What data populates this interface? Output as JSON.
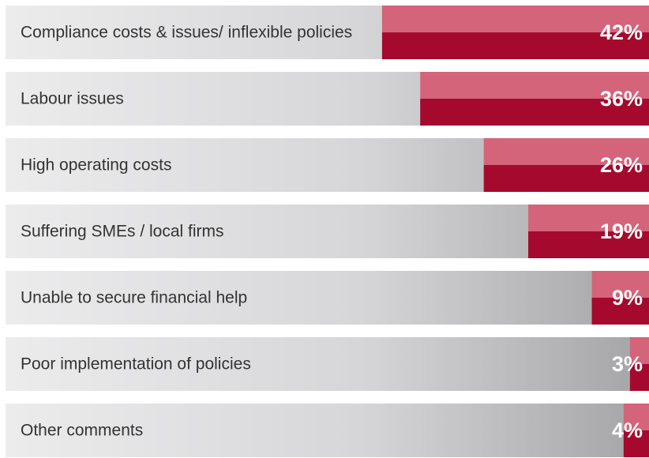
{
  "chart_data": {
    "type": "bar",
    "orientation": "horizontal",
    "categories": [
      "Compliance costs & issues/ inflexible policies",
      "Labour issues",
      "High operating costs",
      "Suffering SMEs / local firms",
      "Unable to secure financial help",
      "Poor implementation of policies",
      "Other comments"
    ],
    "values": [
      42,
      36,
      26,
      19,
      9,
      3,
      4
    ],
    "value_labels": [
      "42%",
      "36%",
      "26%",
      "19%",
      "9%",
      "3%",
      "4%"
    ],
    "color": "#a50a2e",
    "xlim": [
      0,
      100
    ]
  }
}
